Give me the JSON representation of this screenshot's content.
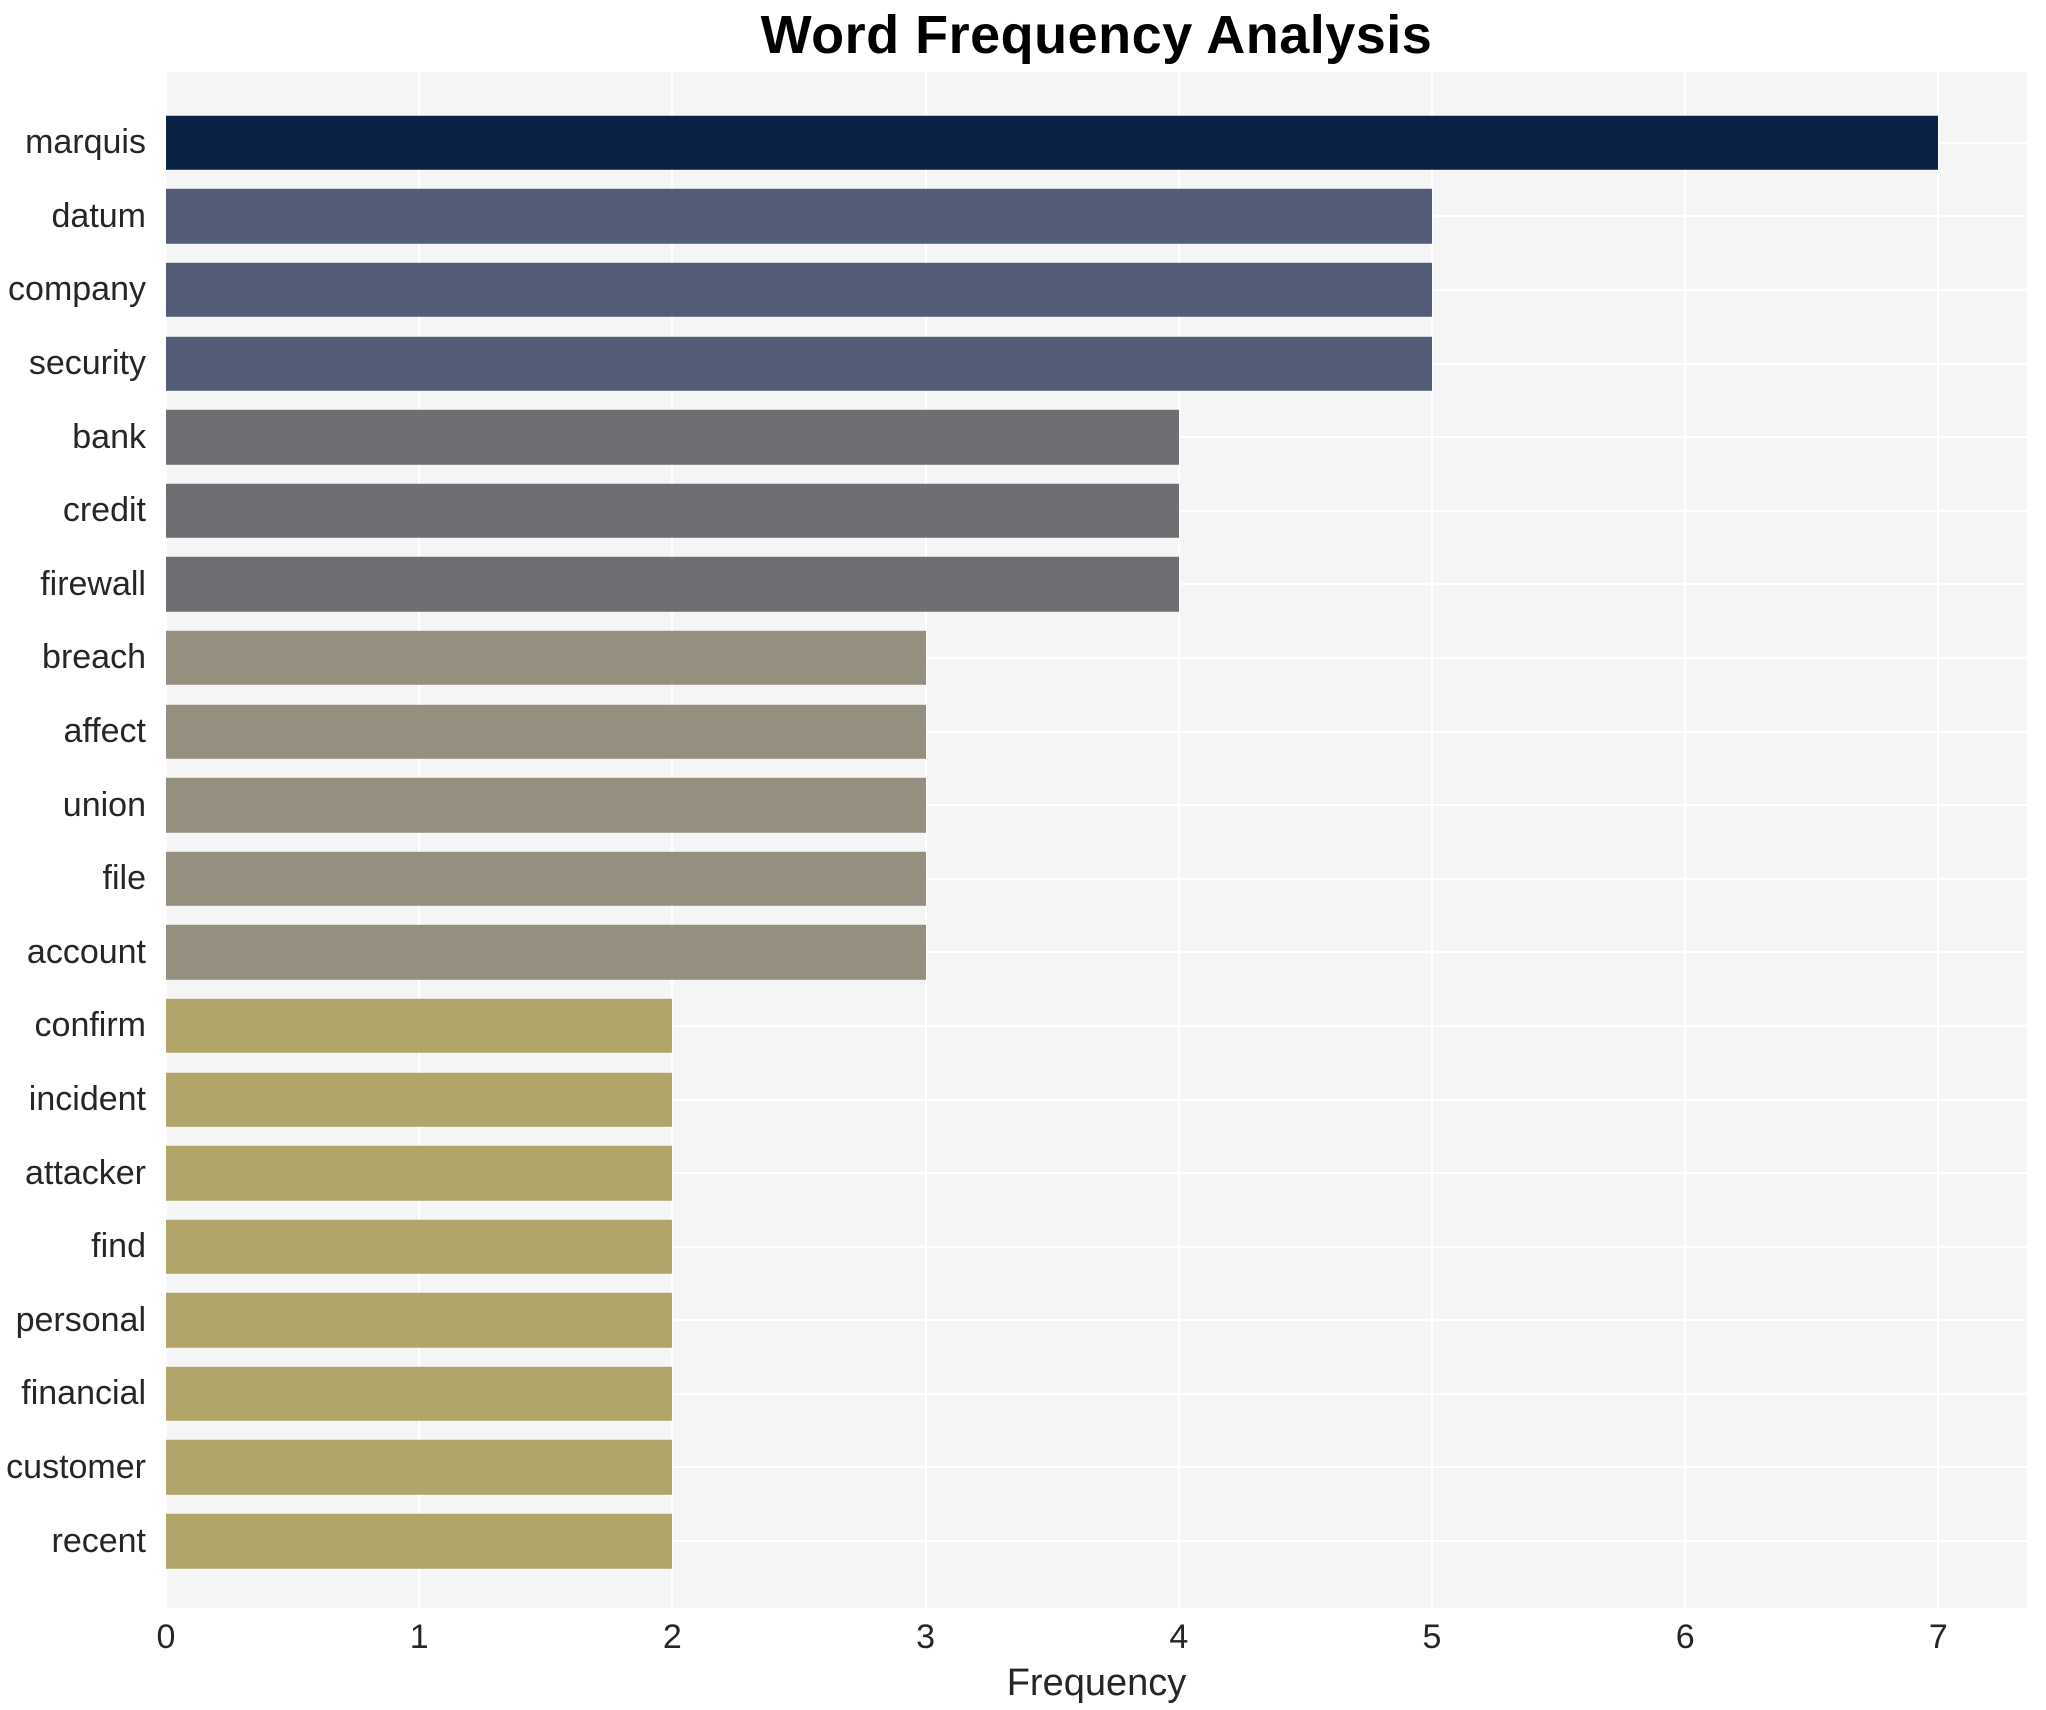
{
  "chart_data": {
    "type": "bar",
    "orientation": "horizontal",
    "title": "Word Frequency Analysis",
    "xlabel": "Frequency",
    "ylabel": "",
    "categories": [
      "marquis",
      "datum",
      "company",
      "security",
      "bank",
      "credit",
      "firewall",
      "breach",
      "affect",
      "union",
      "file",
      "account",
      "confirm",
      "incident",
      "attacker",
      "find",
      "personal",
      "financial",
      "customer",
      "recent"
    ],
    "values": [
      7,
      5,
      5,
      5,
      4,
      4,
      4,
      3,
      3,
      3,
      3,
      3,
      2,
      2,
      2,
      2,
      2,
      2,
      2,
      2
    ],
    "xticks": [
      "0",
      "1",
      "2",
      "3",
      "4",
      "5",
      "6",
      "7"
    ],
    "xlim": [
      0,
      7.35
    ],
    "grid": true,
    "legend": false,
    "colors": {
      "bar_by_value": {
        "7": "#0a2246",
        "5": "#535d78",
        "4": "#6f6f73",
        "3": "#948f7e",
        "2": "#b1a56a"
      },
      "plot_background": "#f5f5f6",
      "grid_line": "#ffffff",
      "text": "#262626",
      "title_text": "#000000"
    }
  }
}
